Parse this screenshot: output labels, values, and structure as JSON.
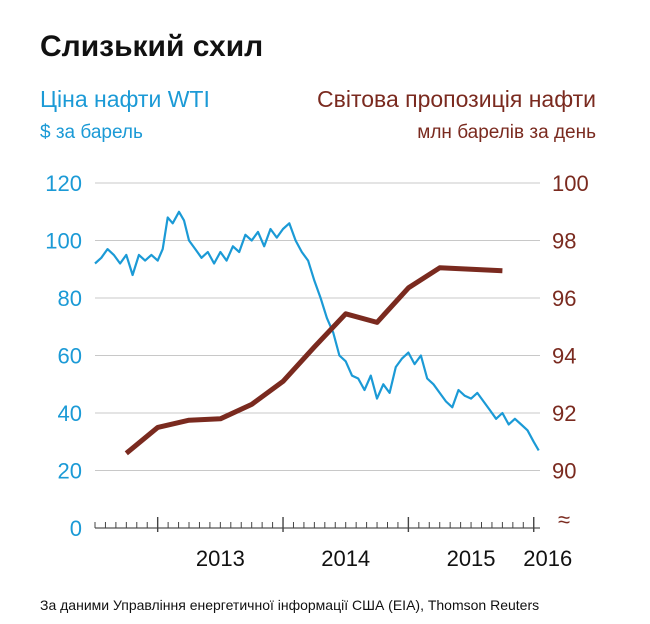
{
  "chart_data": {
    "type": "line",
    "title": "Слизький схил",
    "left_axis": {
      "label": "Ціна нафти WTI",
      "unit": "$ за барель",
      "ticks": [
        0,
        20,
        40,
        60,
        80,
        100,
        120
      ],
      "ylim": [
        0,
        120
      ]
    },
    "right_axis": {
      "label": "Світова пропозиція нафти",
      "unit": "млн барелів за день",
      "ticks": [
        90,
        92,
        94,
        96,
        98,
        100
      ],
      "ylim": [
        88,
        100
      ],
      "break_marker": "≈"
    },
    "x_ticks": [
      "2013",
      "2014",
      "2015",
      "2016"
    ],
    "x_tick_values": [
      2013.0,
      2014.0,
      2015.0,
      2016.0
    ],
    "xlim": [
      2012.5,
      2016.05
    ],
    "grid": true,
    "series": [
      {
        "name": "Ціна нафти WTI",
        "axis": "left",
        "color": "#1b9ad6",
        "x": [
          2012.5,
          2012.55,
          2012.6,
          2012.65,
          2012.7,
          2012.75,
          2012.8,
          2012.85,
          2012.9,
          2012.95,
          2013.0,
          2013.04,
          2013.08,
          2013.12,
          2013.17,
          2013.21,
          2013.25,
          2013.3,
          2013.35,
          2013.4,
          2013.45,
          2013.5,
          2013.55,
          2013.6,
          2013.65,
          2013.7,
          2013.75,
          2013.8,
          2013.85,
          2013.9,
          2013.95,
          2014.0,
          2014.05,
          2014.1,
          2014.15,
          2014.2,
          2014.25,
          2014.3,
          2014.35,
          2014.4,
          2014.45,
          2014.5,
          2014.55,
          2014.6,
          2014.65,
          2014.7,
          2014.75,
          2014.8,
          2014.85,
          2014.9,
          2014.95,
          2015.0,
          2015.05,
          2015.1,
          2015.15,
          2015.2,
          2015.25,
          2015.3,
          2015.35,
          2015.4,
          2015.45,
          2015.5,
          2015.55,
          2015.6,
          2015.65,
          2015.7,
          2015.75,
          2015.8,
          2015.85,
          2015.9,
          2015.95,
          2016.0,
          2016.04
        ],
        "y": [
          92,
          94,
          97,
          95,
          92,
          95,
          88,
          95,
          93,
          95,
          93,
          97,
          108,
          106,
          110,
          107,
          100,
          97,
          94,
          96,
          92,
          96,
          93,
          98,
          96,
          102,
          100,
          103,
          98,
          104,
          101,
          104,
          106,
          100,
          96,
          93,
          86,
          80,
          73,
          68,
          60,
          58,
          53,
          52,
          48,
          53,
          45,
          50,
          47,
          56,
          59,
          61,
          57,
          60,
          52,
          50,
          47,
          44,
          42,
          48,
          46,
          45,
          47,
          44,
          41,
          38,
          40,
          36,
          38,
          36,
          34,
          30,
          27
        ]
      },
      {
        "name": "Світова пропозиція нафти",
        "axis": "right",
        "color": "#7a2a1f",
        "x": [
          2012.75,
          2013.0,
          2013.25,
          2013.5,
          2013.75,
          2014.0,
          2014.25,
          2014.5,
          2014.75,
          2015.0,
          2015.25,
          2015.5,
          2015.75
        ],
        "y": [
          90.6,
          91.5,
          91.75,
          91.8,
          92.3,
          93.1,
          94.3,
          95.45,
          95.15,
          96.35,
          97.05,
          97.0,
          96.95
        ]
      }
    ],
    "source": "За даними Управління енергетичної інформації США (EIA), Thomson Reuters"
  }
}
